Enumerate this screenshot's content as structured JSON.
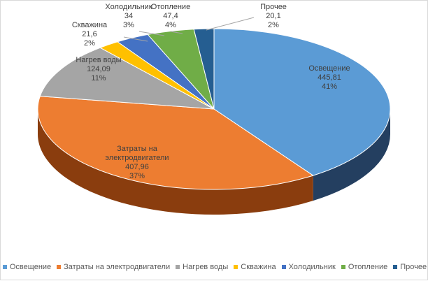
{
  "chart_data": {
    "type": "pie",
    "title": "",
    "style": "3d",
    "legend_position": "bottom",
    "slices": [
      {
        "name": "Освещение",
        "value": 445.81,
        "value_label": "445,81",
        "percent_label": "41%",
        "color": "#5b9bd5",
        "side_color": "#243f60"
      },
      {
        "name": "Затраты на электродвигатели",
        "value": 407.96,
        "value_label": "407,96",
        "percent_label": "37%",
        "color": "#ed7d31",
        "side_color": "#8a3d0e"
      },
      {
        "name": "Нагрев воды",
        "value": 124.09,
        "value_label": "124,09",
        "percent_label": "11%",
        "color": "#a5a5a5",
        "side_color": "#636363"
      },
      {
        "name": "Скважина",
        "value": 21.6,
        "value_label": "21,6",
        "percent_label": "2%",
        "color": "#ffc000",
        "side_color": "#997300"
      },
      {
        "name": "Холодильник",
        "value": 34,
        "value_label": "34",
        "percent_label": "3%",
        "color": "#4472c4",
        "side_color": "#203864"
      },
      {
        "name": "Отопление",
        "value": 47.4,
        "value_label": "47,4",
        "percent_label": "4%",
        "color": "#70ad47",
        "side_color": "#3f6428"
      },
      {
        "name": "Прочее",
        "value": 20.1,
        "value_label": "20,1",
        "percent_label": "2%",
        "color": "#255e91",
        "side_color": "#143452"
      }
    ]
  }
}
